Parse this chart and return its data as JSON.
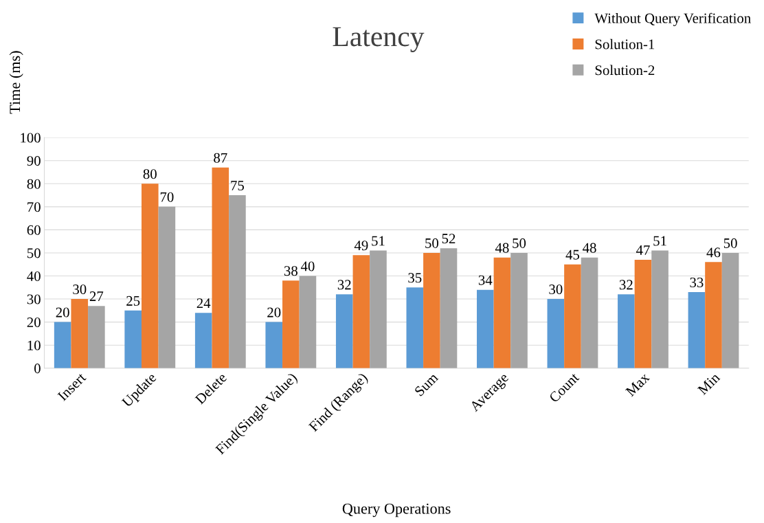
{
  "chart_data": {
    "type": "bar",
    "title": "Latency",
    "xlabel": "Query Operations",
    "ylabel": "Time (ms)",
    "categories": [
      "Insert",
      "Update",
      "Delete",
      "Find(Single Value)",
      "Find (Range)",
      "Sum",
      "Average",
      "Count",
      "Max",
      "Min"
    ],
    "series": [
      {
        "name": "Without Query Verification",
        "color": "#5b9bd5",
        "values": [
          20,
          25,
          24,
          20,
          32,
          35,
          34,
          30,
          32,
          33
        ]
      },
      {
        "name": "Solution-1",
        "color": "#ed7d31",
        "values": [
          30,
          80,
          87,
          38,
          49,
          50,
          48,
          45,
          47,
          46
        ]
      },
      {
        "name": "Solution-2",
        "color": "#a5a5a5",
        "values": [
          27,
          70,
          75,
          40,
          51,
          52,
          50,
          48,
          51,
          50
        ]
      }
    ],
    "ylim": [
      0,
      100
    ],
    "yticks": [
      0,
      10,
      20,
      30,
      40,
      50,
      60,
      70,
      80,
      90,
      100
    ],
    "grid": "y",
    "legend": "top right",
    "data_labels": true
  }
}
